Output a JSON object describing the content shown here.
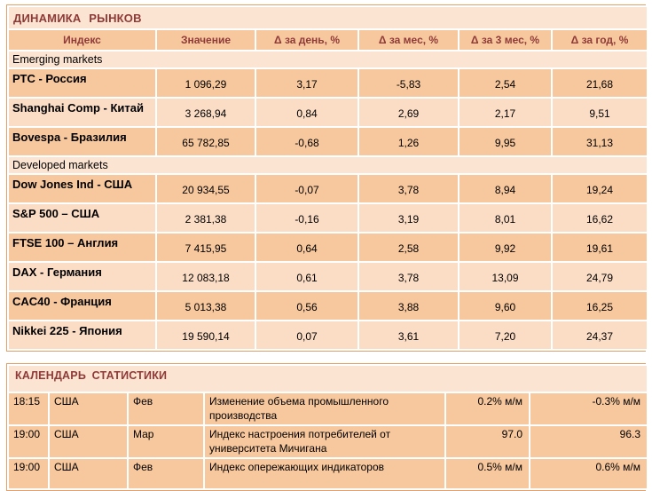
{
  "colors": {
    "title_text": "#8F3A38",
    "header_bg": "#F7C79D",
    "row_dark_bg": "#F7C79D",
    "row_light_bg": "#FBDCC5",
    "section_bg": "#FCE4D2",
    "outer_border": "#E3A068",
    "cell_border": "#FFFFFF"
  },
  "market": {
    "title": "ДИНАМИКА РЫНКОВ",
    "columns": [
      "Индекс",
      "Значение",
      "Δ за день, %",
      "Δ за мес, %",
      "Δ за 3 мес, %",
      "Δ за год, %"
    ],
    "sections": [
      {
        "label": "Emerging markets",
        "rows": [
          {
            "name": "РТС - Россия",
            "values": [
              "1 096,29",
              "3,17",
              "-5,83",
              "2,54",
              "21,68"
            ]
          },
          {
            "name": "Shanghai Comp - Китай",
            "values": [
              "3 268,94",
              "0,84",
              "2,69",
              "2,17",
              "9,51"
            ]
          },
          {
            "name": "Bovespa - Бразилия",
            "values": [
              "65 782,85",
              "-0,68",
              "1,26",
              "9,95",
              "31,13"
            ]
          }
        ]
      },
      {
        "label": "Developed markets",
        "rows": [
          {
            "name": "Dow Jones Ind - США",
            "values": [
              "20 934,55",
              "-0,07",
              "3,78",
              "8,94",
              "19,24"
            ]
          },
          {
            "name": "S&P 500  – США",
            "values": [
              "2 381,38",
              "-0,16",
              "3,19",
              "8,01",
              "16,62"
            ]
          },
          {
            "name": "FTSE 100  – Англия",
            "values": [
              "7 415,95",
              "0,64",
              "2,58",
              "9,92",
              "19,61"
            ]
          },
          {
            "name": "DAX - Германия",
            "values": [
              "12 083,18",
              "0,61",
              "3,78",
              "13,09",
              "24,79"
            ]
          },
          {
            "name": "CAC40 - Франция",
            "values": [
              "5 013,38",
              "0,56",
              "3,88",
              "9,60",
              "16,25"
            ]
          },
          {
            "name": "Nikkei 225 - Япония",
            "values": [
              "19 590,14",
              "0,07",
              "3,61",
              "7,20",
              "24,37"
            ]
          }
        ]
      }
    ]
  },
  "calendar": {
    "title": "КАЛЕНДАРЬ СТАТИСТИКИ",
    "rows": [
      {
        "time": "18:15",
        "country": "США",
        "period": "Фев",
        "event": "Изменение объема промышленного производства",
        "value1": "0.2% м/м",
        "value2": "-0.3% м/м"
      },
      {
        "time": "19:00",
        "country": "США",
        "period": "Мар",
        "event": "Индекс настроения потребителей от университета Мичигана",
        "value1": "97.0",
        "value2": "96.3"
      },
      {
        "time": "19:00",
        "country": "США",
        "period": "Фев",
        "event": "Индекс опережающих индикаторов",
        "value1": "0.5% м/м",
        "value2": "0.6% м/м"
      }
    ]
  }
}
